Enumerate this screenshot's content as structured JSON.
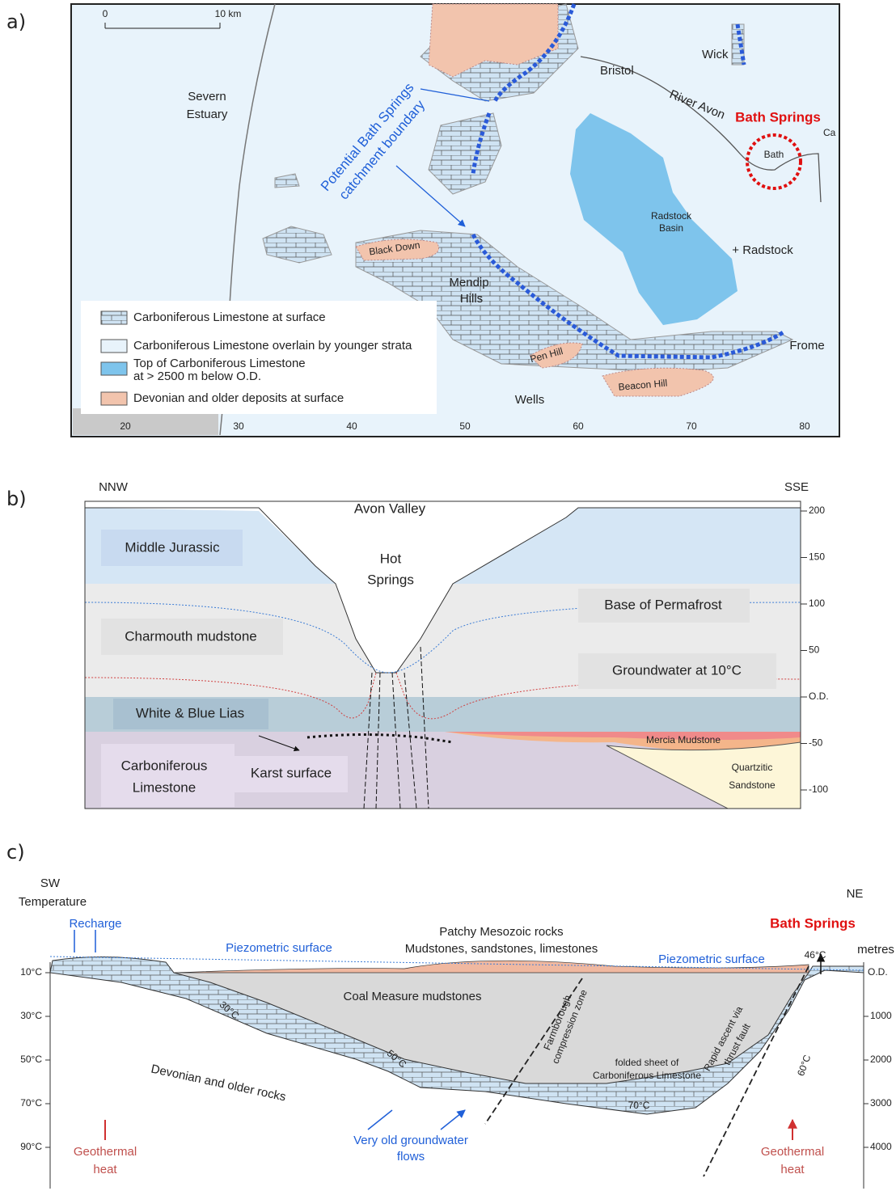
{
  "a": {
    "label": "a)",
    "scale_bar": [
      "0",
      "10 km"
    ],
    "severn_estuary": [
      "Severn",
      "Estuary"
    ],
    "bristol": "Bristol",
    "wick": "Wick",
    "river_avon": "River Avon",
    "bath_springs": "Bath Springs",
    "cam": "Ca",
    "bath": "Bath",
    "radstock_basin": [
      "Radstock",
      "Basin"
    ],
    "radstock": "+ Radstock",
    "black_down": "Black Down",
    "mendip_hills": [
      "Mendip",
      "Hills"
    ],
    "pen_hill": "Pen Hill",
    "beacon_hill": "Beacon Hill",
    "wells": "Wells",
    "frome": "Frome",
    "catchment": [
      "Potential Bath Springs",
      "catchment boundary"
    ],
    "legend": [
      [
        "Carboniferous Limestone at surface"
      ],
      [
        "Carboniferous Limestone overlain by younger strata"
      ],
      [
        "Top of Carboniferous Limestone",
        "at > 2500 m below O.D."
      ],
      [
        "Devonian and older deposits at surface"
      ]
    ],
    "grid_labels": [
      "20",
      "30",
      "40",
      "50",
      "60",
      "70",
      "80"
    ]
  },
  "b": {
    "label": "b)",
    "left_direction": "NNW",
    "right_direction": "SSE",
    "avon_valley": "Avon Valley",
    "hot_springs": [
      "Hot",
      "Springs"
    ],
    "middle_jurassic": "Middle Jurassic",
    "charmouth_mudstone": "Charmouth mudstone",
    "base_of_permafrost": "Base of  Permafrost",
    "groundwater": "Groundwater at 10°C",
    "white_blue_lias": "White & Blue Lias",
    "mercia_mudstone": "Mercia Mudstone",
    "carboniferous_limestone": [
      "Carboniferous",
      "Limestone"
    ],
    "karst_surface": "Karst surface",
    "quartzitic_sandstone": [
      "Quartzitic",
      "Sandstone"
    ],
    "depth_axis": [
      "200",
      "150",
      "100",
      "50",
      "O.D.",
      "-50",
      "-100"
    ]
  },
  "c": {
    "label": "c)",
    "left_direction": "SW",
    "temperature": "Temperature",
    "right_direction": "NE",
    "recharge": "Recharge",
    "piezometric_left": "Piezometric surface",
    "piezometric_right": "Piezometric surface",
    "mesozoic": [
      "Patchy  Mesozoic rocks",
      "Mudstones, sandstones, limestones"
    ],
    "bath_springs": "Bath Springs",
    "metres": "metres",
    "spring_temperature": "46°C",
    "od": "O.D.",
    "coal_measures": "Coal Measure mudstones",
    "farmborough": [
      "Farmborough",
      "compression zone"
    ],
    "folded_sheet": [
      "folded sheet of",
      "Carboniferous Limestone"
    ],
    "rapid_ascent": [
      "Rapid ascent via",
      "thrust fault"
    ],
    "band_temperatures": [
      "30°C",
      "50°C",
      "70°C",
      "60°C"
    ],
    "devonian": "Devonian and older rocks",
    "old_groundwater": [
      "Very old groundwater",
      "flows"
    ],
    "geothermal_left": [
      "Geothermal",
      "heat"
    ],
    "geothermal_right": [
      "Geothermal",
      "heat"
    ],
    "temperature_axis": [
      "10°C",
      "30°C",
      "50°C",
      "70°C",
      "90°C"
    ],
    "depth_axis": [
      "1000",
      "2000",
      "3000",
      "4000"
    ]
  }
}
